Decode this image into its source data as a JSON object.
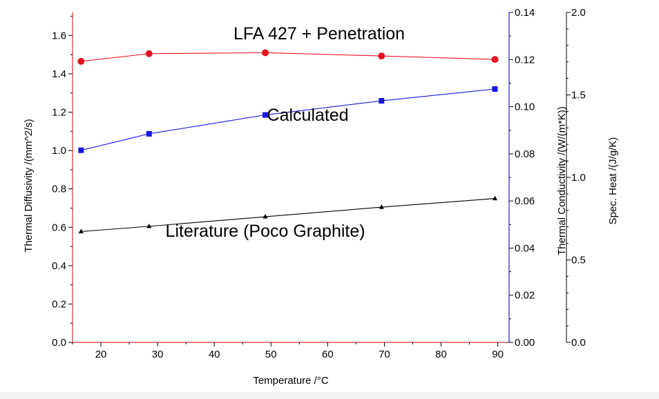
{
  "chart_data": {
    "type": "line",
    "xlabel": "Temperature /°C",
    "xlim": [
      15,
      92
    ],
    "xticks": [
      20,
      30,
      40,
      50,
      60,
      70,
      80,
      90
    ],
    "y_left": {
      "label": "Thermal Diffusivity /(mm^2/s)",
      "lim": [
        0,
        1.72
      ],
      "ticks": [
        "0.0",
        "0.2",
        "0.4",
        "0.6",
        "0.8",
        "1.0",
        "1.2",
        "1.4",
        "1.6"
      ],
      "color": "#e03030"
    },
    "y_right1": {
      "label": "Thermal Conductivity /(W/(m*K))",
      "lim": [
        0,
        0.14
      ],
      "ticks": [
        "0.00",
        "0.02",
        "0.04",
        "0.06",
        "0.08",
        "0.10",
        "0.12",
        "0.14"
      ],
      "color": "#2020d0"
    },
    "y_right2": {
      "label": "Spec. Heat /(J/g/K)",
      "lim": [
        0,
        2.0
      ],
      "ticks": [
        "0.0",
        "0.5",
        "1.0",
        "1.5",
        "2.0"
      ],
      "color": "#000000"
    },
    "series": [
      {
        "name": "LFA 427 + Penetration",
        "axis": "left",
        "color": "#e8111e",
        "marker": "circle",
        "x": [
          16.5,
          28.5,
          49,
          69.5,
          89.5
        ],
        "y": [
          1.465,
          1.505,
          1.51,
          1.493,
          1.475
        ]
      },
      {
        "name": "Calculated",
        "axis": "right1",
        "color": "#1717e0",
        "marker": "square",
        "x": [
          16.5,
          28.5,
          49,
          69.5,
          89.5
        ],
        "y": [
          0.0815,
          0.0885,
          0.0965,
          0.1025,
          0.1075
        ]
      },
      {
        "name": "Literature (Poco Graphite)",
        "axis": "left",
        "color": "#000000",
        "marker": "triangle",
        "x": [
          16.5,
          28.5,
          49,
          69.5,
          89.5
        ],
        "y": [
          0.578,
          0.605,
          0.655,
          0.705,
          0.75
        ]
      }
    ],
    "annotations": [
      {
        "text": "LFA 427 + Penetration",
        "x": 58.5,
        "y_left": 1.58
      },
      {
        "text": "Calculated",
        "x": 56.5,
        "y_left": 1.155
      },
      {
        "text": "Literature (Poco Graphite)",
        "x": 49,
        "y_left": 0.55
      }
    ],
    "grid": false
  }
}
